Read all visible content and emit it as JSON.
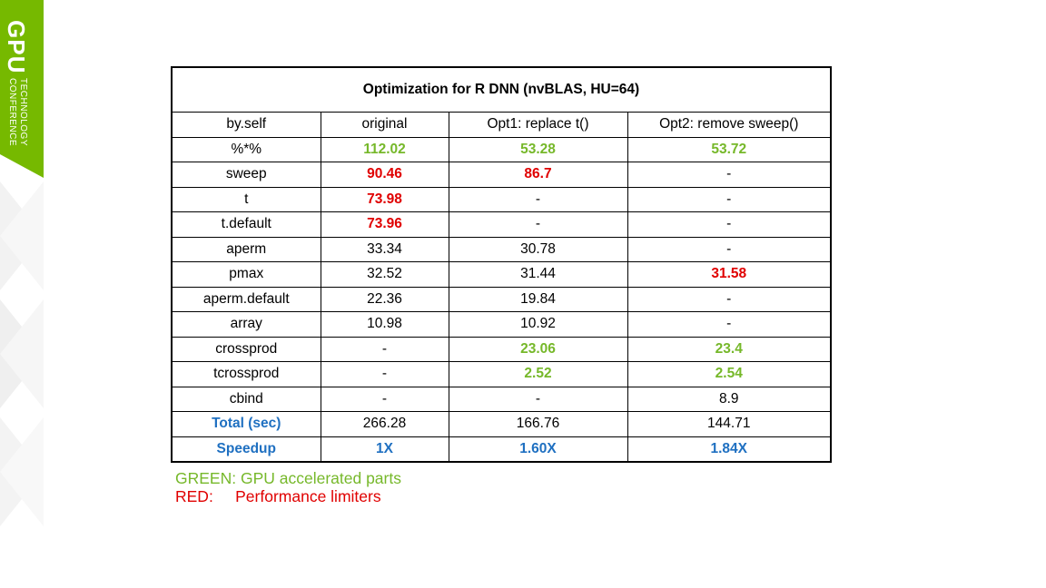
{
  "logo": {
    "name": "GPU",
    "line1": "TECHNOLOGY",
    "line2": "CONFERENCE"
  },
  "table": {
    "title": "Optimization for R DNN (nvBLAS, HU=64)",
    "header": [
      "by.self",
      "original",
      "Opt1: replace t()",
      "Opt2: remove sweep()"
    ],
    "rows": [
      [
        "%*%",
        "112.02",
        "53.28",
        "53.72"
      ],
      [
        "sweep",
        "90.46",
        "86.7",
        "-"
      ],
      [
        "t",
        "73.98",
        "-",
        "-"
      ],
      [
        "t.default",
        "73.96",
        "-",
        "-"
      ],
      [
        "aperm",
        "33.34",
        "30.78",
        "-"
      ],
      [
        "pmax",
        "32.52",
        "31.44",
        "31.58"
      ],
      [
        "aperm.default",
        "22.36",
        "19.84",
        "-"
      ],
      [
        "array",
        "10.98",
        "10.92",
        "-"
      ],
      [
        "crossprod",
        "-",
        "23.06",
        "23.4"
      ],
      [
        "tcrossprod",
        "-",
        "2.52",
        "2.54"
      ],
      [
        "cbind",
        "-",
        "-",
        "8.9"
      ],
      [
        "Total (sec)",
        "266.28",
        "166.76",
        "144.71"
      ],
      [
        "Speedup",
        "1X",
        "1.60X",
        "1.84X"
      ]
    ]
  },
  "legend": [
    "GREEN: GPU accelerated parts",
    "RED:     Performance limiters"
  ]
}
